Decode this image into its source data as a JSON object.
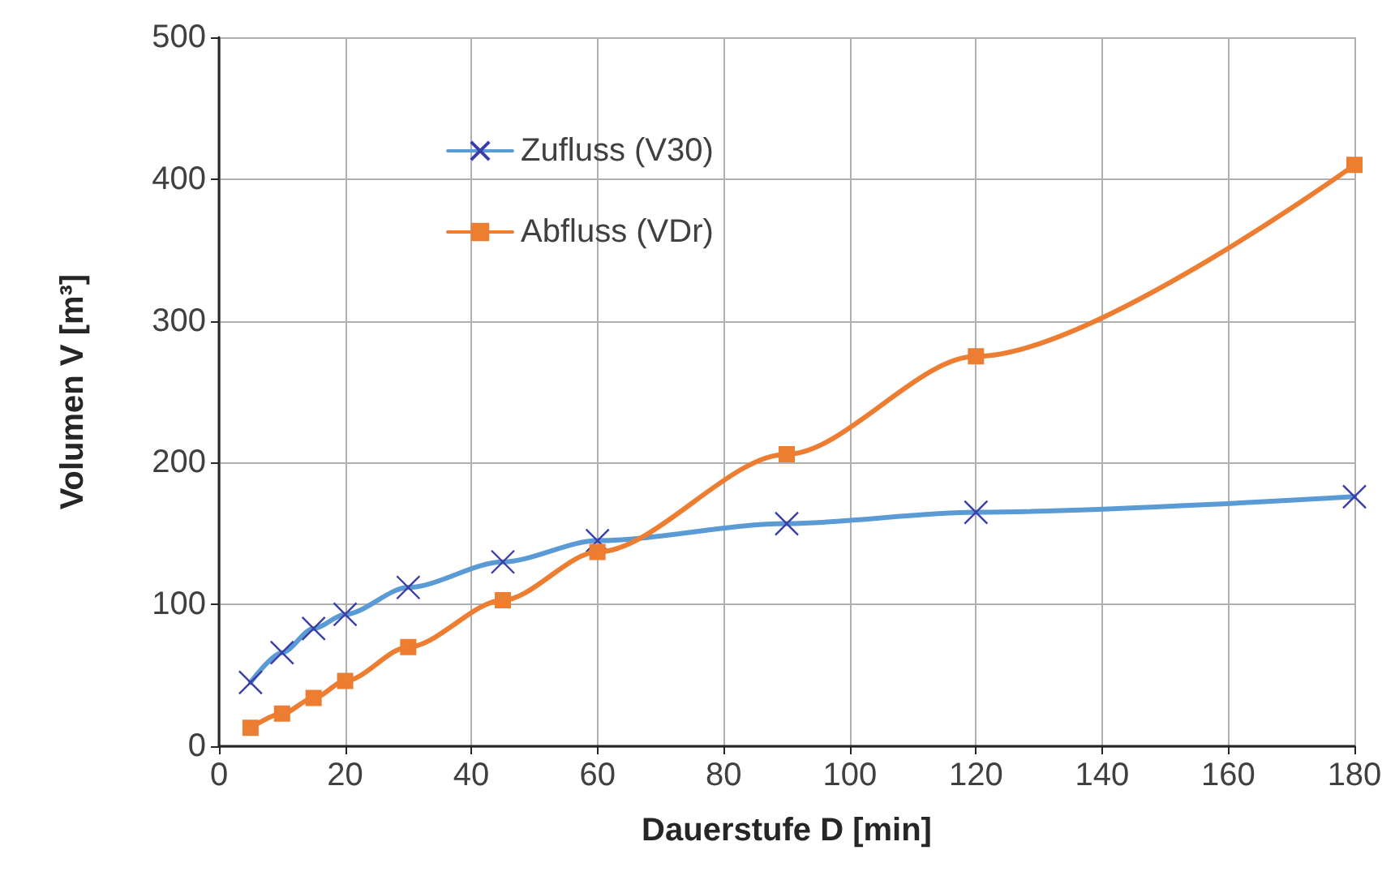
{
  "chart_data": {
    "type": "line",
    "xlabel": "Dauerstufe D [min]",
    "ylabel": "Volumen V [m³]",
    "x": [
      5,
      10,
      15,
      20,
      30,
      45,
      60,
      90,
      120,
      180
    ],
    "series": [
      {
        "name": "Zufluss (V30)",
        "color": "#5b9bd5",
        "marker": "cross",
        "values": [
          45,
          66,
          83,
          93,
          112,
          130,
          145,
          157,
          165,
          176
        ]
      },
      {
        "name": "Abfluss (VDr)",
        "color": "#ed7d31",
        "marker": "square",
        "values": [
          13,
          23,
          34,
          46,
          70,
          103,
          137,
          206,
          275,
          410
        ]
      }
    ],
    "xlim": [
      0,
      180
    ],
    "xticks": [
      0,
      20,
      40,
      60,
      80,
      100,
      120,
      140,
      160,
      180
    ],
    "ylim": [
      0,
      500
    ],
    "yticks": [
      0,
      100,
      200,
      300,
      400,
      500
    ],
    "grid": true,
    "legend": "top left"
  }
}
